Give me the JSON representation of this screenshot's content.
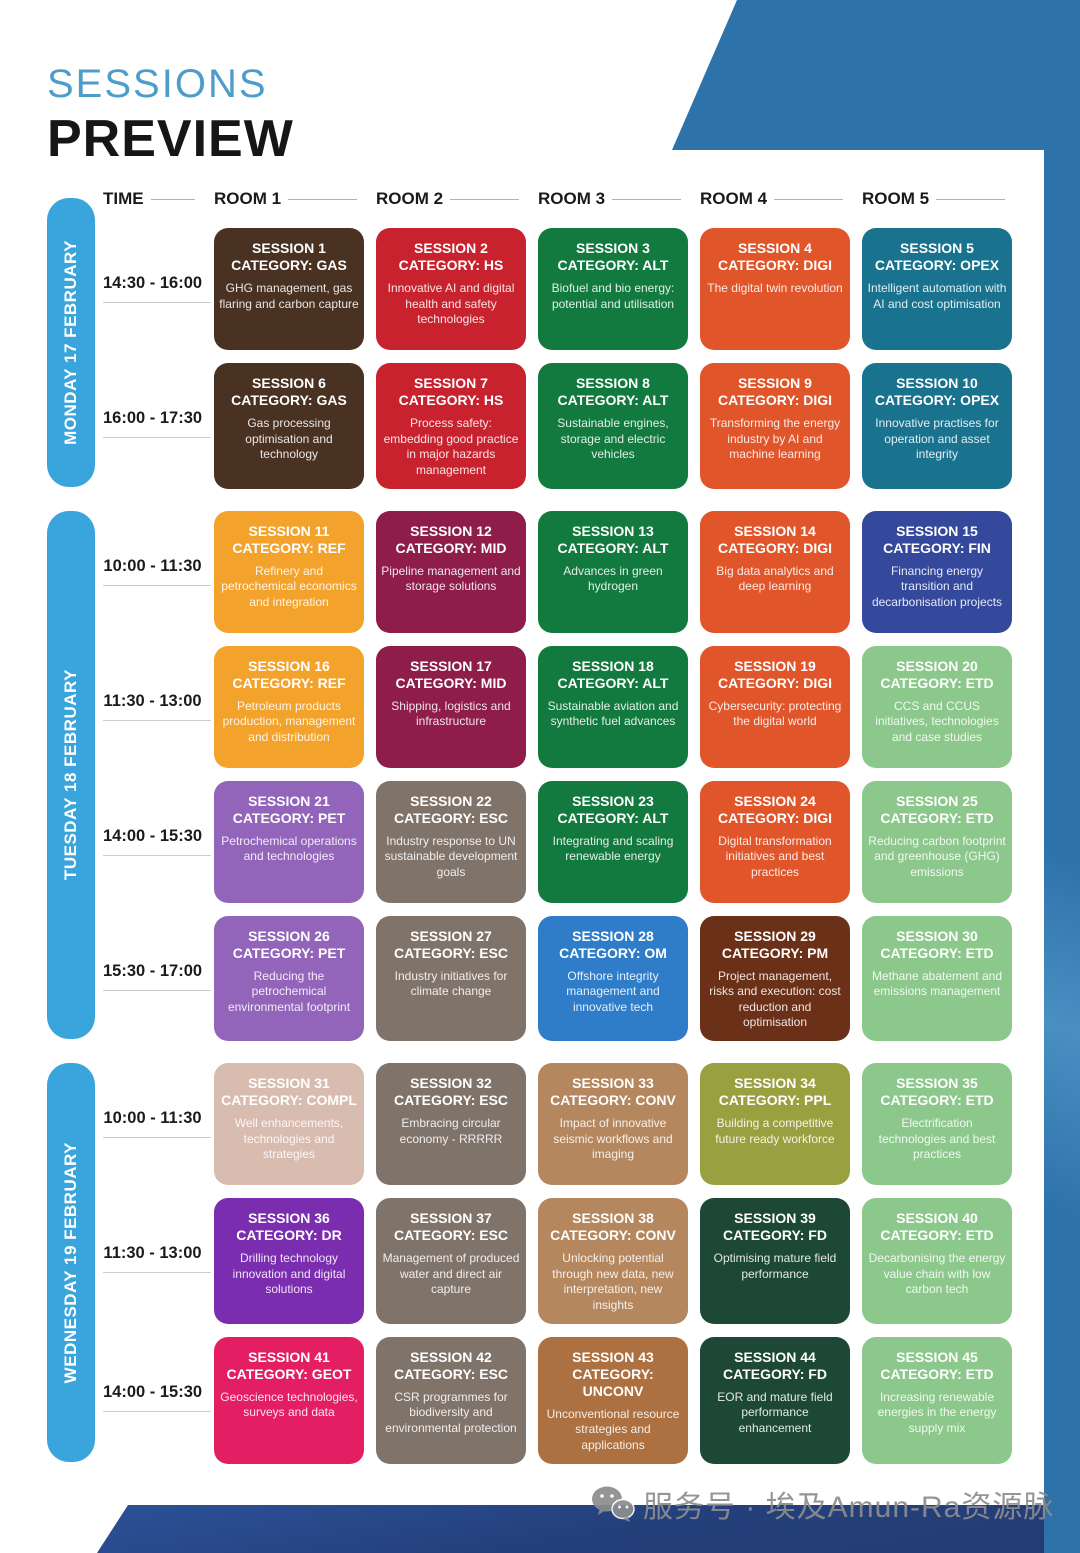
{
  "page": {
    "kicker": "SESSIONS",
    "title": "PREVIEW"
  },
  "header": {
    "time_label": "TIME",
    "rooms": [
      "ROOM 1",
      "ROOM 2",
      "ROOM 3",
      "ROOM 4",
      "ROOM 5"
    ]
  },
  "colors": {
    "kicker": "#4d9dcb",
    "day_bar": "#3aa4dc",
    "corner_shape": "#2e72aa",
    "bottom_band": "#24407c",
    "category_colors": {
      "GAS": "#4a3222",
      "HS": "#c8222f",
      "ALT": "#127a3e",
      "DIGI": "#e0552a",
      "OPEX": "#19738f",
      "REF": "#f3a32c",
      "MID": "#8e1d4a",
      "FIN": "#34489c",
      "ETD": "#8cc88b",
      "PET": "#9264ba",
      "ESC": "#80736a",
      "OM": "#2f7dc8",
      "PM": "#6b3018",
      "COMPL": "#d9bcb0",
      "CONV": "#b5875f",
      "PPL": "#98a040",
      "FD": "#1d4836",
      "DR": "#7b2daf",
      "GEOT": "#e41e63",
      "UNCONV": "#ad7040"
    }
  },
  "days": [
    {
      "label": "MONDAY 17 FEBRUARY",
      "rows": [
        {
          "time": "14:30 - 16:00",
          "sessions": [
            {
              "number": "SESSION 1",
              "category": "CATEGORY: GAS",
              "category_code": "GAS",
              "description": "GHG management, gas flaring and carbon capture"
            },
            {
              "number": "SESSION 2",
              "category": "CATEGORY: HS",
              "category_code": "HS",
              "description": "Innovative AI and digital health and safety technologies"
            },
            {
              "number": "SESSION 3",
              "category": "CATEGORY: ALT",
              "category_code": "ALT",
              "description": "Biofuel and bio energy: potential and utilisation"
            },
            {
              "number": "SESSION 4",
              "category": "CATEGORY: DIGI",
              "category_code": "DIGI",
              "description": "The digital twin revolution"
            },
            {
              "number": "SESSION 5",
              "category": "CATEGORY: OPEX",
              "category_code": "OPEX",
              "description": "Intelligent automation with AI and cost optimisation"
            }
          ]
        },
        {
          "time": "16:00 - 17:30",
          "sessions": [
            {
              "number": "SESSION 6",
              "category": "CATEGORY: GAS",
              "category_code": "GAS",
              "description": "Gas processing optimisation and technology"
            },
            {
              "number": "SESSION 7",
              "category": "CATEGORY: HS",
              "category_code": "HS",
              "description": "Process safety: embedding good practice in major hazards management"
            },
            {
              "number": "SESSION 8",
              "category": "CATEGORY: ALT",
              "category_code": "ALT",
              "description": "Sustainable engines, storage and electric vehicles"
            },
            {
              "number": "SESSION 9",
              "category": "CATEGORY: DIGI",
              "category_code": "DIGI",
              "description": "Transforming the energy industry by AI and machine learning"
            },
            {
              "number": "SESSION 10",
              "category": "CATEGORY: OPEX",
              "category_code": "OPEX",
              "description": "Innovative practises for operation and asset integrity"
            }
          ]
        }
      ]
    },
    {
      "label": "TUESDAY 18 FEBRUARY",
      "rows": [
        {
          "time": "10:00 - 11:30",
          "sessions": [
            {
              "number": "SESSION 11",
              "category": "CATEGORY: REF",
              "category_code": "REF",
              "description": "Refinery and petrochemical economics and integration"
            },
            {
              "number": "SESSION 12",
              "category": "CATEGORY: MID",
              "category_code": "MID",
              "description": "Pipeline management and storage solutions"
            },
            {
              "number": "SESSION 13",
              "category": "CATEGORY: ALT",
              "category_code": "ALT",
              "description": "Advances in green hydrogen"
            },
            {
              "number": "SESSION 14",
              "category": "CATEGORY: DIGI",
              "category_code": "DIGI",
              "description": "Big data analytics and deep learning"
            },
            {
              "number": "SESSION 15",
              "category": "CATEGORY: FIN",
              "category_code": "FIN",
              "description": "Financing energy transition and decarbonisation projects"
            }
          ]
        },
        {
          "time": "11:30 - 13:00",
          "sessions": [
            {
              "number": "SESSION 16",
              "category": "CATEGORY: REF",
              "category_code": "REF",
              "description": "Petroleum products production, management and distribution"
            },
            {
              "number": "SESSION 17",
              "category": "CATEGORY: MID",
              "category_code": "MID",
              "description": "Shipping, logistics and infrastructure"
            },
            {
              "number": "SESSION 18",
              "category": "CATEGORY: ALT",
              "category_code": "ALT",
              "description": "Sustainable aviation and synthetic fuel advances"
            },
            {
              "number": "SESSION 19",
              "category": "CATEGORY: DIGI",
              "category_code": "DIGI",
              "description": "Cybersecurity: protecting the digital world"
            },
            {
              "number": "SESSION 20",
              "category": "CATEGORY: ETD",
              "category_code": "ETD",
              "description": "CCS and CCUS initiatives, technologies and case studies"
            }
          ]
        },
        {
          "time": "14:00 - 15:30",
          "sessions": [
            {
              "number": "SESSION 21",
              "category": "CATEGORY: PET",
              "category_code": "PET",
              "description": "Petrochemical operations and technologies"
            },
            {
              "number": "SESSION 22",
              "category": "CATEGORY: ESC",
              "category_code": "ESC",
              "description": "Industry response to UN sustainable development goals"
            },
            {
              "number": "SESSION 23",
              "category": "CATEGORY: ALT",
              "category_code": "ALT",
              "description": "Integrating and scaling renewable energy"
            },
            {
              "number": "SESSION 24",
              "category": "CATEGORY: DIGI",
              "category_code": "DIGI",
              "description": "Digital transformation initiatives and best practices"
            },
            {
              "number": "SESSION 25",
              "category": "CATEGORY: ETD",
              "category_code": "ETD",
              "description": "Reducing carbon footprint and greenhouse (GHG) emissions"
            }
          ]
        },
        {
          "time": "15:30 - 17:00",
          "sessions": [
            {
              "number": "SESSION 26",
              "category": "CATEGORY: PET",
              "category_code": "PET",
              "description": "Reducing the petrochemical environmental footprint"
            },
            {
              "number": "SESSION 27",
              "category": "CATEGORY: ESC",
              "category_code": "ESC",
              "description": "Industry initiatives for climate change"
            },
            {
              "number": "SESSION 28",
              "category": "CATEGORY: OM",
              "category_code": "OM",
              "description": "Offshore integrity management and innovative tech"
            },
            {
              "number": "SESSION 29",
              "category": "CATEGORY: PM",
              "category_code": "PM",
              "description": "Project management, risks and execution: cost reduction and optimisation"
            },
            {
              "number": "SESSION 30",
              "category": "CATEGORY: ETD",
              "category_code": "ETD",
              "description": "Methane abatement and emissions management"
            }
          ]
        }
      ]
    },
    {
      "label": "WEDNESDAY 19 FEBRUARY",
      "rows": [
        {
          "time": "10:00 - 11:30",
          "sessions": [
            {
              "number": "SESSION 31",
              "category": "CATEGORY: COMPL",
              "category_code": "COMPL",
              "description": "Well enhancements, technologies and strategies"
            },
            {
              "number": "SESSION 32",
              "category": "CATEGORY: ESC",
              "category_code": "ESC",
              "description": "Embracing circular economy - RRRRR"
            },
            {
              "number": "SESSION 33",
              "category": "CATEGORY: CONV",
              "category_code": "CONV",
              "description": "Impact of innovative seismic workflows and imaging"
            },
            {
              "number": "SESSION 34",
              "category": "CATEGORY: PPL",
              "category_code": "PPL",
              "description": "Building a competitive future ready workforce"
            },
            {
              "number": "SESSION 35",
              "category": "CATEGORY: ETD",
              "category_code": "ETD",
              "description": "Electrification technologies and best practices"
            }
          ]
        },
        {
          "time": "11:30 - 13:00",
          "sessions": [
            {
              "number": "SESSION 36",
              "category": "CATEGORY: DR",
              "category_code": "DR",
              "description": "Drilling technology innovation and digital solutions"
            },
            {
              "number": "SESSION 37",
              "category": "CATEGORY: ESC",
              "category_code": "ESC",
              "description": "Management of produced water and direct air capture"
            },
            {
              "number": "SESSION 38",
              "category": "CATEGORY: CONV",
              "category_code": "CONV",
              "description": "Unlocking potential through new data, new interpretation, new insights"
            },
            {
              "number": "SESSION 39",
              "category": "CATEGORY: FD",
              "category_code": "FD",
              "description": "Optimising mature field performance"
            },
            {
              "number": "SESSION 40",
              "category": "CATEGORY: ETD",
              "category_code": "ETD",
              "description": "Decarbonising the energy value chain with low carbon tech"
            }
          ]
        },
        {
          "time": "14:00 - 15:30",
          "sessions": [
            {
              "number": "SESSION 41",
              "category": "CATEGORY: GEOT",
              "category_code": "GEOT",
              "description": "Geoscience technologies, surveys and data"
            },
            {
              "number": "SESSION 42",
              "category": "CATEGORY: ESC",
              "category_code": "ESC",
              "description": "CSR programmes for biodiversity and environmental protection"
            },
            {
              "number": "SESSION 43",
              "category": "CATEGORY: UNCONV",
              "category_code": "UNCONV",
              "description": "Unconventional resource strategies and applications"
            },
            {
              "number": "SESSION 44",
              "category": "CATEGORY: FD",
              "category_code": "FD",
              "description": "EOR and mature field performance enhancement"
            },
            {
              "number": "SESSION 45",
              "category": "CATEGORY: ETD",
              "category_code": "ETD",
              "description": "Increasing renewable energies in the energy supply mix"
            }
          ]
        }
      ]
    }
  ],
  "watermark": {
    "icon": "wechat-icon",
    "text": "服务号 · 埃及Amun-Ra资源脉"
  }
}
